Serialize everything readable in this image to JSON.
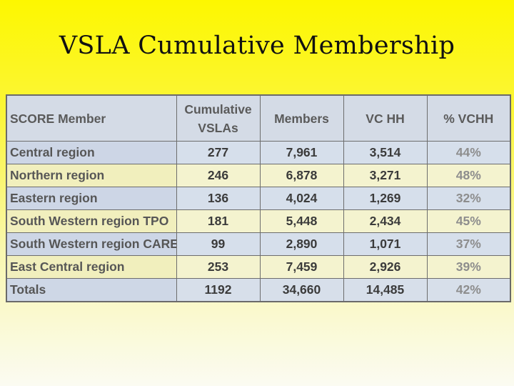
{
  "title": "VSLA Cumulative Membership",
  "table": {
    "headers": [
      "SCORE Member",
      "Cumulative VSLAs",
      "Members",
      "VC HH",
      "% VCHH"
    ],
    "rows": [
      {
        "name": "Central region",
        "vslas": "277",
        "members": "7,961",
        "vchh": "3,514",
        "pct": "44%"
      },
      {
        "name": "Northern region",
        "vslas": "246",
        "members": "6,878",
        "vchh": "3,271",
        "pct": "48%"
      },
      {
        "name": "Eastern region",
        "vslas": "136",
        "members": "4,024",
        "vchh": "1,269",
        "pct": "32%"
      },
      {
        "name": "South Western region TPO",
        "vslas": "181",
        "members": "5,448",
        "vchh": "2,434",
        "pct": "45%"
      },
      {
        "name": "South Western region CARE",
        "vslas": "99",
        "members": "2,890",
        "vchh": "1,071",
        "pct": "37%"
      },
      {
        "name": "East Central region",
        "vslas": "253",
        "members": "7,459",
        "vchh": "2,926",
        "pct": "39%"
      },
      {
        "name": "Totals",
        "vslas": "1192",
        "members": "34,660",
        "vchh": "14,485",
        "pct": "42%"
      }
    ]
  }
}
